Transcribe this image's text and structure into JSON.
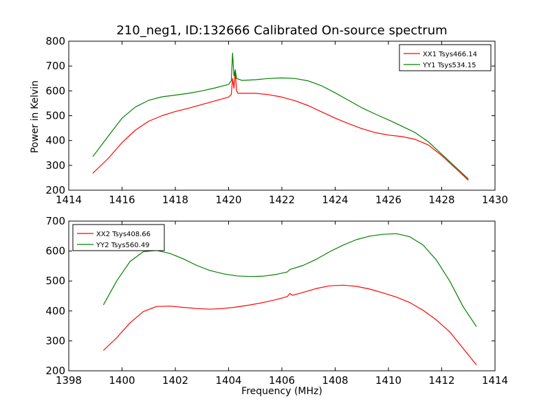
{
  "figure": {
    "title": "210_neg1, ID:132666 Calibrated On-source spectrum",
    "ylabel": "Power in Kelvin",
    "xlabel": "Frequency (MHz)"
  },
  "chart_data": [
    {
      "type": "line",
      "title": "210_neg1, ID:132666 Calibrated On-source spectrum",
      "ylabel": "Power in Kelvin",
      "xlabel": "",
      "xlim": [
        1414,
        1430
      ],
      "ylim": [
        200,
        800
      ],
      "xticks": [
        1414,
        1416,
        1418,
        1420,
        1422,
        1424,
        1426,
        1428,
        1430
      ],
      "yticks": [
        200,
        300,
        400,
        500,
        600,
        700,
        800
      ],
      "legend_position": "top-right",
      "grid": false,
      "series": [
        {
          "name": "XX1 Tsys466.14",
          "color": "#ff0000",
          "points": [
            [
              1414.9,
              268
            ],
            [
              1415.5,
              330
            ],
            [
              1416.0,
              392
            ],
            [
              1416.5,
              442
            ],
            [
              1417.0,
              478
            ],
            [
              1417.5,
              500
            ],
            [
              1418.0,
              517
            ],
            [
              1418.5,
              530
            ],
            [
              1419.0,
              545
            ],
            [
              1419.5,
              560
            ],
            [
              1420.0,
              575
            ],
            [
              1420.1,
              585
            ],
            [
              1420.15,
              650
            ],
            [
              1420.2,
              610
            ],
            [
              1420.25,
              675
            ],
            [
              1420.3,
              600
            ],
            [
              1420.35,
              590
            ],
            [
              1420.5,
              590
            ],
            [
              1421.0,
              590
            ],
            [
              1421.5,
              585
            ],
            [
              1422.0,
              575
            ],
            [
              1422.5,
              560
            ],
            [
              1423.0,
              540
            ],
            [
              1423.5,
              515
            ],
            [
              1424.0,
              490
            ],
            [
              1424.5,
              468
            ],
            [
              1425.0,
              448
            ],
            [
              1425.5,
              432
            ],
            [
              1426.0,
              422
            ],
            [
              1426.5,
              416
            ],
            [
              1427.0,
              405
            ],
            [
              1427.5,
              382
            ],
            [
              1428.0,
              340
            ],
            [
              1428.5,
              290
            ],
            [
              1429.0,
              240
            ]
          ]
        },
        {
          "name": "YY1 Tsys534.15",
          "color": "#008000",
          "points": [
            [
              1414.9,
              335
            ],
            [
              1415.5,
              420
            ],
            [
              1416.0,
              490
            ],
            [
              1416.5,
              535
            ],
            [
              1417.0,
              562
            ],
            [
              1417.5,
              576
            ],
            [
              1418.0,
              583
            ],
            [
              1418.5,
              590
            ],
            [
              1419.0,
              600
            ],
            [
              1419.5,
              612
            ],
            [
              1420.0,
              626
            ],
            [
              1420.1,
              640
            ],
            [
              1420.15,
              752
            ],
            [
              1420.2,
              660
            ],
            [
              1420.25,
              685
            ],
            [
              1420.3,
              650
            ],
            [
              1420.5,
              642
            ],
            [
              1421.0,
              645
            ],
            [
              1421.5,
              650
            ],
            [
              1422.0,
              652
            ],
            [
              1422.5,
              650
            ],
            [
              1423.0,
              640
            ],
            [
              1423.5,
              620
            ],
            [
              1424.0,
              592
            ],
            [
              1424.5,
              562
            ],
            [
              1425.0,
              532
            ],
            [
              1425.5,
              507
            ],
            [
              1426.0,
              483
            ],
            [
              1426.5,
              458
            ],
            [
              1427.0,
              432
            ],
            [
              1427.5,
              395
            ],
            [
              1428.0,
              345
            ],
            [
              1428.5,
              295
            ],
            [
              1429.0,
              245
            ]
          ]
        }
      ]
    },
    {
      "type": "line",
      "title": "",
      "ylabel": "",
      "xlabel": "Frequency (MHz)",
      "xlim": [
        1398,
        1414
      ],
      "ylim": [
        200,
        700
      ],
      "xticks": [
        1398,
        1400,
        1402,
        1404,
        1406,
        1408,
        1410,
        1412,
        1414
      ],
      "yticks": [
        200,
        300,
        400,
        500,
        600,
        700
      ],
      "legend_position": "top-left",
      "grid": false,
      "series": [
        {
          "name": "XX2 Tsys408.66",
          "color": "#ff0000",
          "points": [
            [
              1399.3,
              268
            ],
            [
              1399.8,
              310
            ],
            [
              1400.3,
              360
            ],
            [
              1400.8,
              398
            ],
            [
              1401.3,
              415
            ],
            [
              1401.8,
              416
            ],
            [
              1402.3,
              412
            ],
            [
              1402.8,
              408
            ],
            [
              1403.3,
              406
            ],
            [
              1403.8,
              408
            ],
            [
              1404.3,
              413
            ],
            [
              1404.8,
              420
            ],
            [
              1405.3,
              428
            ],
            [
              1405.8,
              438
            ],
            [
              1406.2,
              448
            ],
            [
              1406.3,
              458
            ],
            [
              1406.4,
              452
            ],
            [
              1406.8,
              462
            ],
            [
              1407.3,
              475
            ],
            [
              1407.8,
              484
            ],
            [
              1408.3,
              486
            ],
            [
              1408.8,
              482
            ],
            [
              1409.3,
              473
            ],
            [
              1409.8,
              460
            ],
            [
              1410.3,
              446
            ],
            [
              1410.8,
              428
            ],
            [
              1411.3,
              402
            ],
            [
              1411.8,
              370
            ],
            [
              1412.3,
              330
            ],
            [
              1412.8,
              275
            ],
            [
              1413.3,
              220
            ]
          ]
        },
        {
          "name": "YY2 Tsys560.49",
          "color": "#008000",
          "points": [
            [
              1399.3,
              420
            ],
            [
              1399.8,
              500
            ],
            [
              1400.3,
              565
            ],
            [
              1400.8,
              598
            ],
            [
              1401.3,
              602
            ],
            [
              1401.8,
              592
            ],
            [
              1402.3,
              574
            ],
            [
              1402.8,
              552
            ],
            [
              1403.3,
              535
            ],
            [
              1403.8,
              524
            ],
            [
              1404.3,
              517
            ],
            [
              1404.8,
              515
            ],
            [
              1405.3,
              516
            ],
            [
              1405.8,
              522
            ],
            [
              1406.2,
              530
            ],
            [
              1406.3,
              538
            ],
            [
              1406.8,
              552
            ],
            [
              1407.3,
              573
            ],
            [
              1407.8,
              598
            ],
            [
              1408.3,
              620
            ],
            [
              1408.8,
              638
            ],
            [
              1409.3,
              650
            ],
            [
              1409.8,
              656
            ],
            [
              1410.3,
              658
            ],
            [
              1410.8,
              648
            ],
            [
              1411.3,
              620
            ],
            [
              1411.8,
              570
            ],
            [
              1412.3,
              500
            ],
            [
              1412.8,
              415
            ],
            [
              1413.3,
              348
            ]
          ]
        }
      ]
    }
  ]
}
